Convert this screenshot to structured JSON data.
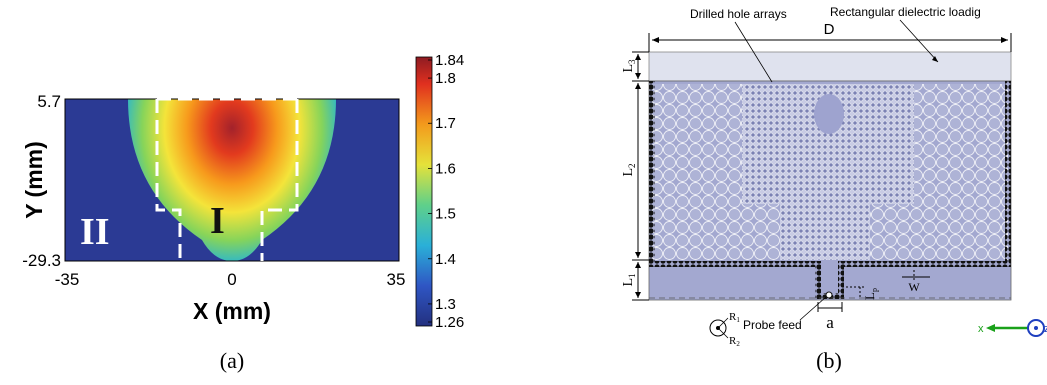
{
  "panel_a": {
    "caption": "(a)",
    "x_axis_label": "X (mm)",
    "y_axis_label": "Y (mm)",
    "x_ticks": [
      "-35",
      "0",
      "35"
    ],
    "y_ticks": [
      "5.7",
      "-29.3"
    ],
    "region_label_1": "I",
    "region_label_2": "II",
    "colorbar_ticks": [
      "1.84",
      "1.8",
      "1.7",
      "1.6",
      "1.5",
      "1.4",
      "1.3",
      "1.26"
    ],
    "colors": {
      "background": "#2b3a94",
      "hot": "#c0392b"
    }
  },
  "panel_b": {
    "caption": "(b)",
    "labels": {
      "drilled_holes": "Drilled hole arrays",
      "dielectric_loading": "Rectangular dielectric loadig",
      "D": "D",
      "L3": "L",
      "L3_sub": "3",
      "L2": "L",
      "L2_sub": "2",
      "L1": "L",
      "L1_sub": "1",
      "Lp": "L",
      "Lp_sub": "p",
      "W": "W",
      "a": "a",
      "probe_feed": "Probe feed",
      "R1": "R",
      "R1_sub": "1",
      "R2": "R",
      "R2_sub": "2",
      "axis_x": "x",
      "axis_z": "z"
    },
    "colors": {
      "loading": "#dfe2ee",
      "board": "#a3a8d0",
      "via": "#111111",
      "axis_x": "#1aa11a",
      "axis_z": "#1e3fbf"
    }
  }
}
